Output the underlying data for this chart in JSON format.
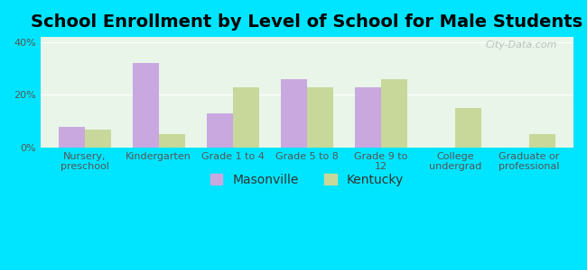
{
  "title": "School Enrollment by Level of School for Male Students",
  "categories": [
    "Nursery,\npreschool",
    "Kindergarten",
    "Grade 1 to 4",
    "Grade 5 to 8",
    "Grade 9 to\n12",
    "College\nundergrad",
    "Graduate or\nprofessional"
  ],
  "masonville": [
    8,
    32,
    13,
    26,
    23,
    0,
    0
  ],
  "kentucky": [
    7,
    5,
    23,
    23,
    26,
    15,
    5
  ],
  "masonville_color": "#c9a8e0",
  "kentucky_color": "#c8d89a",
  "title_fontsize": 14,
  "tick_fontsize": 8,
  "legend_fontsize": 10,
  "ylim": [
    0,
    42
  ],
  "yticks": [
    0,
    20,
    40
  ],
  "ytick_labels": [
    "0%",
    "20%",
    "40%"
  ],
  "bar_width": 0.35,
  "background_color_plot": "#e8f5e8",
  "background_color_fig": "#00e5ff",
  "watermark": "City-Data.com"
}
